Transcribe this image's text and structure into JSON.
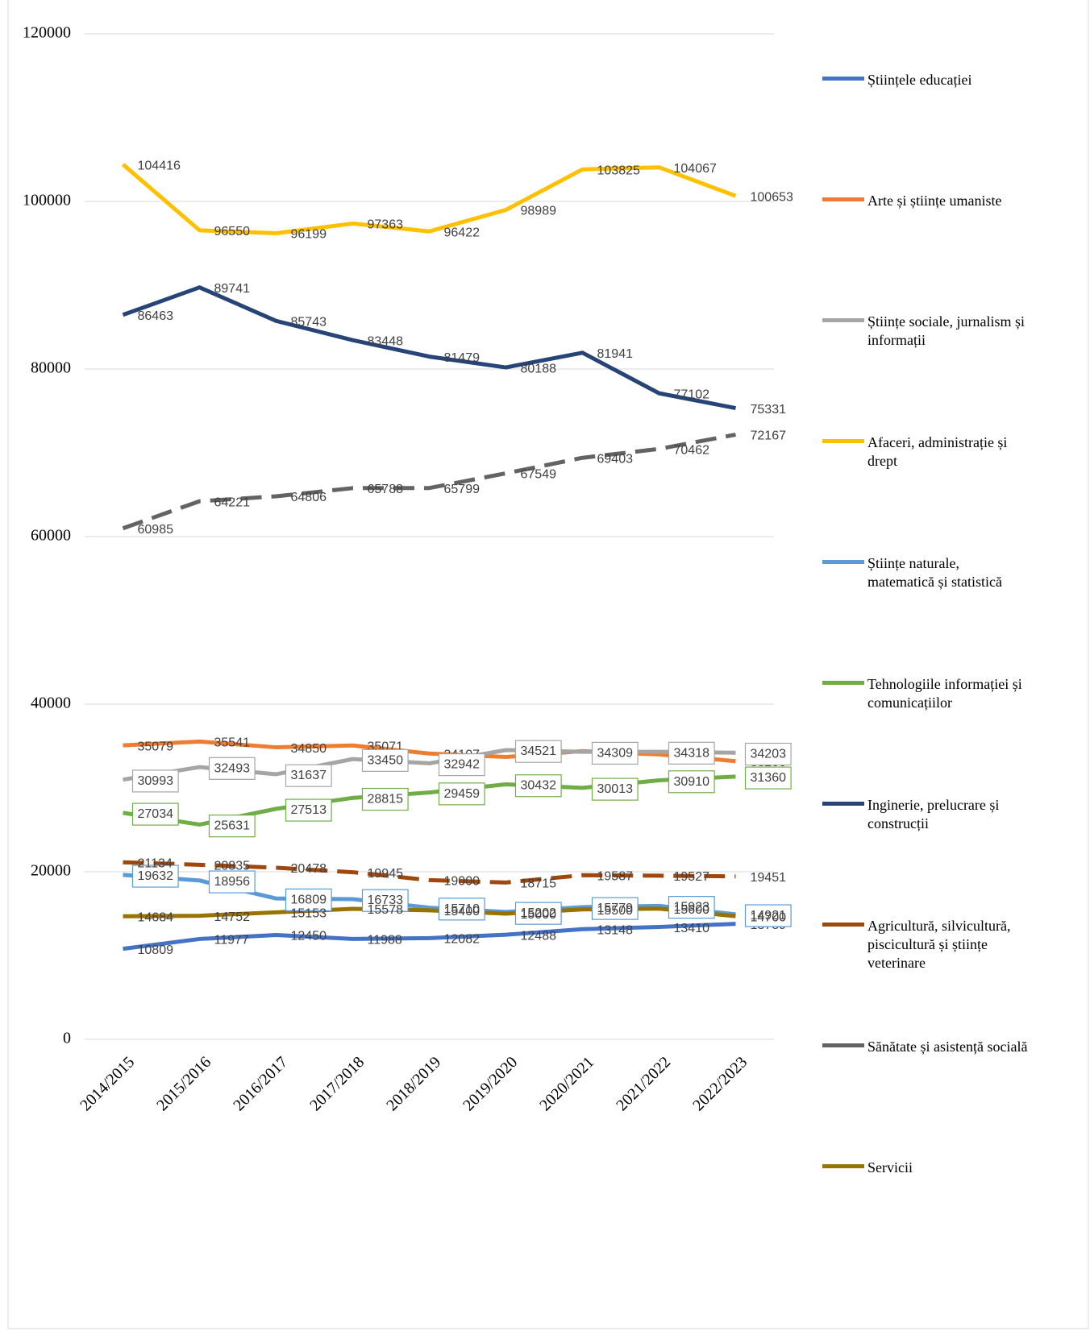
{
  "chart_data": {
    "type": "line",
    "categories": [
      "2014/2015",
      "2015/2016",
      "2016/2017",
      "2017/2018",
      "2018/2019",
      "2019/2020",
      "2020/2021",
      "2021/2022",
      "2022/2023"
    ],
    "ylim": [
      0,
      120000
    ],
    "yticks": [
      0,
      20000,
      40000,
      60000,
      80000,
      100000,
      120000
    ],
    "grid": true,
    "legend": "right",
    "series": [
      {
        "name": "Științele educației",
        "color": "#4472c4",
        "values": [
          10809,
          11977,
          12450,
          11988,
          12082,
          12488,
          13148,
          13410,
          13789
        ]
      },
      {
        "name": "Arte și științe umaniste",
        "color": "#ed7d31",
        "values": [
          35079,
          35541,
          34850,
          35071,
          34107,
          33700,
          34400,
          34000,
          33200
        ]
      },
      {
        "name": "Științe sociale, jurnalism și informații",
        "color": "#a5a5a5",
        "label_box": true,
        "values": [
          30993,
          32493,
          31637,
          33450,
          32942,
          34521,
          34309,
          34318,
          34203
        ]
      },
      {
        "name": "Afaceri, administrație și drept",
        "color": "#ffc000",
        "values": [
          104416,
          96550,
          96199,
          97363,
          96422,
          98989,
          103825,
          104067,
          100653
        ]
      },
      {
        "name": "Științe naturale, matematică și statistică",
        "color": "#5b9bd5",
        "label_box": true,
        "values": [
          19632,
          18956,
          16809,
          16733,
          15710,
          15202,
          15779,
          15923,
          14921
        ]
      },
      {
        "name": "Tehnologiile informației și comunicațiilor",
        "color": "#70ad47",
        "label_box": true,
        "values": [
          27034,
          25631,
          27513,
          28815,
          29459,
          30432,
          30013,
          30910,
          31360
        ]
      },
      {
        "name": "Inginerie, prelucrare și construcții",
        "color": "#264478",
        "values": [
          86463,
          89741,
          85743,
          83448,
          81479,
          80188,
          81941,
          77102,
          75331
        ]
      },
      {
        "name": "Agricultură, silvicultură, piscicultură și științe veterinare",
        "color": "#9e480e",
        "dashed": true,
        "values": [
          21134,
          20835,
          20478,
          19945,
          19000,
          18715,
          19587,
          19527,
          19451
        ]
      },
      {
        "name": "Sănătate și asistență socială",
        "color": "#636363",
        "dashed": true,
        "values": [
          60985,
          64221,
          64806,
          65788,
          65799,
          67549,
          69403,
          70462,
          72167
        ]
      },
      {
        "name": "Servicii",
        "color": "#997300",
        "values": [
          14684,
          14752,
          15153,
          15578,
          15400,
          15000,
          15500,
          15600,
          14700
        ]
      }
    ]
  }
}
